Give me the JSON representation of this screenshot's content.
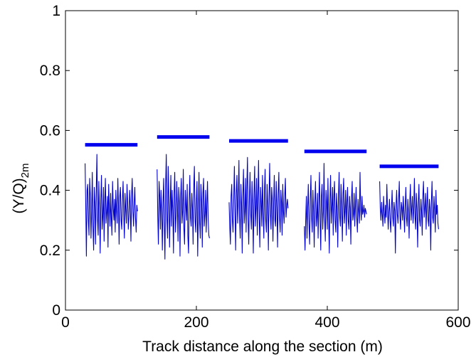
{
  "chart_data": {
    "type": "line",
    "title": "",
    "xlabel": "Track distance along the section (m)",
    "ylabel": "(Y/Q)",
    "ylabel_subscript": "2m",
    "xlim": [
      0,
      600
    ],
    "ylim": [
      0,
      1
    ],
    "xticks": [
      "0",
      "200",
      "400",
      "600"
    ],
    "yticks": [
      "0",
      "0.2",
      "0.4",
      "0.6",
      "0.8",
      "1"
    ],
    "grid": false,
    "legend": "none",
    "colors": {
      "series": "#0000cc",
      "limit": "#0000ee",
      "axes": "#000000"
    },
    "series": [
      {
        "x": [
          30,
          31,
          32,
          33,
          34,
          35,
          36,
          37,
          38,
          39,
          40,
          41,
          42,
          43,
          44,
          45,
          46,
          47,
          48,
          49,
          50,
          51,
          52,
          53,
          54,
          55,
          56,
          57,
          58,
          59,
          60,
          61,
          62,
          63,
          64,
          65,
          66,
          67,
          68,
          69,
          70,
          71,
          72,
          73,
          74,
          75,
          76,
          77,
          78,
          79,
          80,
          81,
          82,
          83,
          84,
          85,
          86,
          87,
          88,
          89,
          90,
          91,
          92,
          93,
          94,
          95,
          96,
          97,
          98,
          99,
          100,
          101,
          102,
          103,
          104,
          105,
          106,
          107,
          108,
          109,
          110
        ],
        "y": [
          0.49,
          0.35,
          0.18,
          0.4,
          0.42,
          0.3,
          0.25,
          0.44,
          0.38,
          0.24,
          0.33,
          0.46,
          0.28,
          0.2,
          0.41,
          0.36,
          0.22,
          0.39,
          0.52,
          0.3,
          0.25,
          0.43,
          0.34,
          0.19,
          0.37,
          0.45,
          0.27,
          0.31,
          0.41,
          0.23,
          0.36,
          0.44,
          0.29,
          0.33,
          0.38,
          0.21,
          0.42,
          0.35,
          0.28,
          0.39,
          0.31,
          0.25,
          0.43,
          0.34,
          0.3,
          0.37,
          0.26,
          0.4,
          0.33,
          0.29,
          0.44,
          0.35,
          0.22,
          0.38,
          0.41,
          0.3,
          0.27,
          0.36,
          0.43,
          0.32,
          0.24,
          0.39,
          0.34,
          0.29,
          0.42,
          0.36,
          0.27,
          0.31,
          0.4,
          0.35,
          0.23,
          0.38,
          0.44,
          0.33,
          0.28,
          0.36,
          0.41,
          0.31,
          0.26,
          0.35,
          0.33
        ]
      },
      {
        "x": [
          140,
          141,
          142,
          143,
          144,
          145,
          146,
          147,
          148,
          149,
          150,
          151,
          152,
          153,
          154,
          155,
          156,
          157,
          158,
          159,
          160,
          161,
          162,
          163,
          164,
          165,
          166,
          167,
          168,
          169,
          170,
          171,
          172,
          173,
          174,
          175,
          176,
          177,
          178,
          179,
          180,
          181,
          182,
          183,
          184,
          185,
          186,
          187,
          188,
          189,
          190,
          191,
          192,
          193,
          194,
          195,
          196,
          197,
          198,
          199,
          200,
          201,
          202,
          203,
          204,
          205,
          206,
          207,
          208,
          209,
          210,
          211,
          212,
          213,
          214,
          215,
          216,
          217,
          218,
          219,
          220
        ],
        "y": [
          0.47,
          0.32,
          0.22,
          0.43,
          0.38,
          0.27,
          0.4,
          0.34,
          0.2,
          0.36,
          0.44,
          0.29,
          0.17,
          0.42,
          0.52,
          0.3,
          0.24,
          0.48,
          0.37,
          0.21,
          0.35,
          0.45,
          0.28,
          0.4,
          0.33,
          0.19,
          0.39,
          0.46,
          0.26,
          0.31,
          0.43,
          0.35,
          0.23,
          0.41,
          0.36,
          0.18,
          0.38,
          0.44,
          0.29,
          0.33,
          0.47,
          0.27,
          0.22,
          0.4,
          0.35,
          0.3,
          0.42,
          0.25,
          0.19,
          0.37,
          0.45,
          0.31,
          0.28,
          0.39,
          0.34,
          0.22,
          0.41,
          0.48,
          0.3,
          0.26,
          0.37,
          0.43,
          0.18,
          0.33,
          0.46,
          0.29,
          0.24,
          0.42,
          0.36,
          0.21,
          0.39,
          0.44,
          0.28,
          0.32,
          0.4,
          0.26,
          0.35,
          0.43,
          0.3,
          0.25,
          0.24
        ]
      },
      {
        "x": [
          250,
          251,
          252,
          253,
          254,
          255,
          256,
          257,
          258,
          259,
          260,
          261,
          262,
          263,
          264,
          265,
          266,
          267,
          268,
          269,
          270,
          271,
          272,
          273,
          274,
          275,
          276,
          277,
          278,
          279,
          280,
          281,
          282,
          283,
          284,
          285,
          286,
          287,
          288,
          289,
          290,
          291,
          292,
          293,
          294,
          295,
          296,
          297,
          298,
          299,
          300,
          301,
          302,
          303,
          304,
          305,
          306,
          307,
          308,
          309,
          310,
          311,
          312,
          313,
          314,
          315,
          316,
          317,
          318,
          319,
          320,
          321,
          322,
          323,
          324,
          325,
          326,
          327,
          328,
          329,
          330,
          331,
          332,
          333,
          334,
          335,
          336,
          337,
          338,
          339,
          340
        ],
        "y": [
          0.36,
          0.28,
          0.22,
          0.38,
          0.42,
          0.3,
          0.26,
          0.36,
          0.48,
          0.33,
          0.2,
          0.39,
          0.45,
          0.29,
          0.36,
          0.5,
          0.31,
          0.24,
          0.42,
          0.35,
          0.19,
          0.38,
          0.47,
          0.29,
          0.33,
          0.44,
          0.26,
          0.4,
          0.51,
          0.3,
          0.22,
          0.37,
          0.46,
          0.32,
          0.27,
          0.43,
          0.35,
          0.19,
          0.39,
          0.48,
          0.28,
          0.34,
          0.44,
          0.25,
          0.38,
          0.5,
          0.31,
          0.21,
          0.41,
          0.36,
          0.28,
          0.45,
          0.33,
          0.24,
          0.4,
          0.47,
          0.3,
          0.26,
          0.42,
          0.35,
          0.2,
          0.38,
          0.49,
          0.32,
          0.27,
          0.41,
          0.37,
          0.23,
          0.36,
          0.45,
          0.3,
          0.28,
          0.43,
          0.34,
          0.21,
          0.39,
          0.46,
          0.31,
          0.26,
          0.4,
          0.36,
          0.25,
          0.42,
          0.33,
          0.29,
          0.38,
          0.44,
          0.31,
          0.35,
          0.37,
          0.34
        ]
      },
      {
        "x": [
          365,
          366,
          367,
          368,
          369,
          370,
          371,
          372,
          373,
          374,
          375,
          376,
          377,
          378,
          379,
          380,
          381,
          382,
          383,
          384,
          385,
          386,
          387,
          388,
          389,
          390,
          391,
          392,
          393,
          394,
          395,
          396,
          397,
          398,
          399,
          400,
          401,
          402,
          403,
          404,
          405,
          406,
          407,
          408,
          409,
          410,
          411,
          412,
          413,
          414,
          415,
          416,
          417,
          418,
          419,
          420,
          421,
          422,
          423,
          424,
          425,
          426,
          427,
          428,
          429,
          430,
          431,
          432,
          433,
          434,
          435,
          436,
          437,
          438,
          439,
          440,
          441,
          442,
          443,
          444,
          445,
          446,
          447,
          448,
          449,
          450,
          451,
          452,
          453,
          454,
          455,
          456,
          457,
          458,
          459,
          460
        ],
        "y": [
          0.28,
          0.2,
          0.3,
          0.38,
          0.24,
          0.34,
          0.42,
          0.29,
          0.22,
          0.37,
          0.45,
          0.31,
          0.26,
          0.4,
          0.33,
          0.21,
          0.36,
          0.43,
          0.28,
          0.31,
          0.39,
          0.24,
          0.35,
          0.46,
          0.3,
          0.2,
          0.38,
          0.42,
          0.27,
          0.33,
          0.49,
          0.31,
          0.23,
          0.4,
          0.36,
          0.27,
          0.44,
          0.32,
          0.19,
          0.37,
          0.45,
          0.29,
          0.34,
          0.41,
          0.25,
          0.38,
          0.43,
          0.3,
          0.26,
          0.39,
          0.34,
          0.21,
          0.37,
          0.46,
          0.31,
          0.28,
          0.42,
          0.35,
          0.23,
          0.39,
          0.44,
          0.29,
          0.33,
          0.4,
          0.25,
          0.36,
          0.41,
          0.3,
          0.27,
          0.38,
          0.34,
          0.22,
          0.37,
          0.43,
          0.3,
          0.32,
          0.39,
          0.28,
          0.35,
          0.41,
          0.31,
          0.26,
          0.37,
          0.33,
          0.29,
          0.46,
          0.34,
          0.3,
          0.38,
          0.32,
          0.33,
          0.35,
          0.31,
          0.34,
          0.33,
          0.32
        ]
      },
      {
        "x": [
          480,
          481,
          482,
          483,
          484,
          485,
          486,
          487,
          488,
          489,
          490,
          491,
          492,
          493,
          494,
          495,
          496,
          497,
          498,
          499,
          500,
          501,
          502,
          503,
          504,
          505,
          506,
          507,
          508,
          509,
          510,
          511,
          512,
          513,
          514,
          515,
          516,
          517,
          518,
          519,
          520,
          521,
          522,
          523,
          524,
          525,
          526,
          527,
          528,
          529,
          530,
          531,
          532,
          533,
          534,
          535,
          536,
          537,
          538,
          539,
          540,
          541,
          542,
          543,
          544,
          545,
          546,
          547,
          548,
          549,
          550,
          551,
          552,
          553,
          554,
          555,
          556,
          557,
          558,
          559,
          560,
          561,
          562,
          563,
          564,
          565,
          566,
          567,
          568,
          569,
          570
        ],
        "y": [
          0.43,
          0.34,
          0.3,
          0.36,
          0.32,
          0.28,
          0.38,
          0.33,
          0.29,
          0.35,
          0.31,
          0.42,
          0.34,
          0.27,
          0.33,
          0.37,
          0.3,
          0.26,
          0.34,
          0.4,
          0.31,
          0.28,
          0.36,
          0.33,
          0.19,
          0.35,
          0.4,
          0.32,
          0.29,
          0.37,
          0.43,
          0.31,
          0.27,
          0.36,
          0.34,
          0.3,
          0.38,
          0.33,
          0.26,
          0.35,
          0.41,
          0.31,
          0.28,
          0.37,
          0.33,
          0.24,
          0.36,
          0.42,
          0.3,
          0.34,
          0.38,
          0.29,
          0.33,
          0.44,
          0.31,
          0.27,
          0.39,
          0.34,
          0.21,
          0.36,
          0.42,
          0.3,
          0.28,
          0.37,
          0.33,
          0.25,
          0.38,
          0.43,
          0.31,
          0.34,
          0.39,
          0.27,
          0.35,
          0.41,
          0.3,
          0.28,
          0.37,
          0.34,
          0.2,
          0.36,
          0.43,
          0.31,
          0.29,
          0.38,
          0.33,
          0.26,
          0.4,
          0.32,
          0.35,
          0.29,
          0.27
        ]
      }
    ],
    "limits": [
      {
        "x": [
          30,
          110
        ],
        "y": 0.552
      },
      {
        "x": [
          140,
          220
        ],
        "y": 0.578
      },
      {
        "x": [
          250,
          340
        ],
        "y": 0.565
      },
      {
        "x": [
          365,
          460
        ],
        "y": 0.53
      },
      {
        "x": [
          480,
          570
        ],
        "y": 0.48
      }
    ]
  }
}
